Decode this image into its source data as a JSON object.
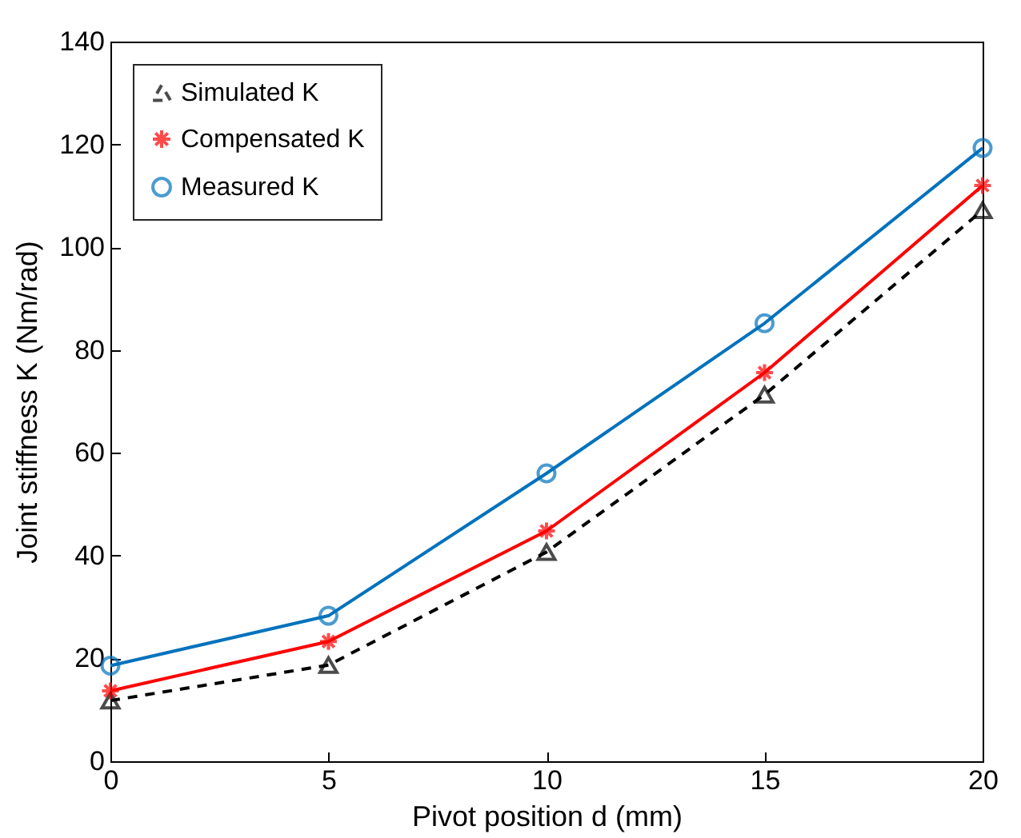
{
  "chart_data": {
    "type": "line",
    "xlabel": "Pivot position d (mm)",
    "ylabel": "Joint stiffness K (Nm/rad)",
    "x": [
      0,
      5,
      10,
      15,
      20
    ],
    "series": [
      {
        "name": "Simulated K",
        "color": "#000000",
        "marker": "triangle",
        "line_style": "dashed",
        "values": [
          11.8,
          18.7,
          40.7,
          71.3,
          107.2
        ]
      },
      {
        "name": "Compensated K",
        "color": "#ff0000",
        "marker": "cross",
        "line_style": "solid",
        "values": [
          13.7,
          23.3,
          44.8,
          75.6,
          112
        ]
      },
      {
        "name": "Measured K",
        "color": "#0072bd",
        "marker": "circle",
        "line_style": "solid",
        "values": [
          18.6,
          28.3,
          56,
          85.2,
          119.3
        ]
      }
    ],
    "xlim": [
      0,
      20
    ],
    "xticks": [
      0,
      5,
      10,
      15,
      20
    ],
    "ylim": [
      0,
      140
    ],
    "yticks": [
      0,
      20,
      40,
      60,
      80,
      100,
      120,
      140
    ],
    "grid": false,
    "legend": "top left"
  }
}
